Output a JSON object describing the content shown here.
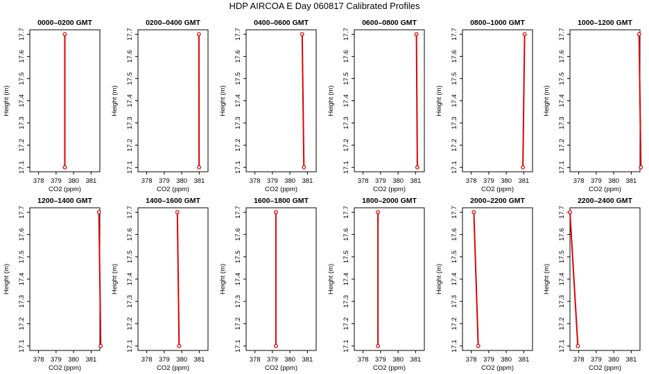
{
  "title": "HDP  AIRCOA E  Day 060817  Calibrated Profiles",
  "colors": {
    "profile": "#dd0000",
    "axis": "#000000"
  },
  "chart_data": [
    {
      "type": "line",
      "title": "0000–0200 GMT",
      "xlabel": "CO2 (ppm)",
      "ylabel": "Height (m)",
      "xlim": [
        377.5,
        381.5
      ],
      "ylim": [
        17.08,
        17.72
      ],
      "xticks": [
        "378",
        "379",
        "380",
        "381"
      ],
      "yticks": [
        "17.1",
        "17.2",
        "17.3",
        "17.4",
        "17.5",
        "17.6",
        "17.7"
      ],
      "series": [
        {
          "x": [
            379.5,
            379.5
          ],
          "y": [
            17.1,
            17.7
          ]
        }
      ]
    },
    {
      "type": "line",
      "title": "0200–0400 GMT",
      "xlabel": "CO2 (ppm)",
      "ylabel": "Height (m)",
      "xlim": [
        377.5,
        381.5
      ],
      "ylim": [
        17.08,
        17.72
      ],
      "xticks": [
        "378",
        "379",
        "380",
        "381"
      ],
      "yticks": [
        "17.1",
        "17.2",
        "17.3",
        "17.4",
        "17.5",
        "17.6",
        "17.7"
      ],
      "series": [
        {
          "x": [
            380.99,
            380.98
          ],
          "y": [
            17.1,
            17.7
          ]
        }
      ]
    },
    {
      "type": "line",
      "title": "0400–0600 GMT",
      "xlabel": "CO2 (ppm)",
      "ylabel": "Height (m)",
      "xlim": [
        377.5,
        381.5
      ],
      "ylim": [
        17.08,
        17.72
      ],
      "xticks": [
        "378",
        "379",
        "380",
        "381"
      ],
      "yticks": [
        "17.1",
        "17.2",
        "17.3",
        "17.4",
        "17.5",
        "17.6",
        "17.7"
      ],
      "series": [
        {
          "x": [
            380.8,
            380.7
          ],
          "y": [
            17.1,
            17.7
          ]
        }
      ]
    },
    {
      "type": "line",
      "title": "0600–0800 GMT",
      "xlabel": "CO2 (ppm)",
      "ylabel": "Height (m)",
      "xlim": [
        377.5,
        381.5
      ],
      "ylim": [
        17.08,
        17.72
      ],
      "xticks": [
        "378",
        "379",
        "380",
        "381"
      ],
      "yticks": [
        "17.1",
        "17.2",
        "17.3",
        "17.4",
        "17.5",
        "17.6",
        "17.7"
      ],
      "series": [
        {
          "x": [
            381.1,
            381.05
          ],
          "y": [
            17.1,
            17.7
          ]
        }
      ]
    },
    {
      "type": "line",
      "title": "0800–1000 GMT",
      "xlabel": "CO2 (ppm)",
      "ylabel": "Height (m)",
      "xlim": [
        377.5,
        381.5
      ],
      "ylim": [
        17.08,
        17.72
      ],
      "xticks": [
        "378",
        "379",
        "380",
        "381"
      ],
      "yticks": [
        "17.1",
        "17.2",
        "17.3",
        "17.4",
        "17.5",
        "17.6",
        "17.7"
      ],
      "series": [
        {
          "x": [
            380.95,
            381.05
          ],
          "y": [
            17.1,
            17.7
          ]
        }
      ]
    },
    {
      "type": "line",
      "title": "1000–1200 GMT",
      "xlabel": "CO2 (ppm)",
      "ylabel": "Height (m)",
      "xlim": [
        377.5,
        381.5
      ],
      "ylim": [
        17.08,
        17.72
      ],
      "xticks": [
        "378",
        "379",
        "380",
        "381"
      ],
      "yticks": [
        "17.1",
        "17.2",
        "17.3",
        "17.4",
        "17.5",
        "17.6",
        "17.7"
      ],
      "series": [
        {
          "x": [
            381.55,
            381.45
          ],
          "y": [
            17.1,
            17.7
          ]
        }
      ]
    },
    {
      "type": "line",
      "title": "1200–1400 GMT",
      "xlabel": "CO2 (ppm)",
      "ylabel": "Height (m)",
      "xlim": [
        377.5,
        381.5
      ],
      "ylim": [
        17.08,
        17.72
      ],
      "xticks": [
        "378",
        "379",
        "380",
        "381"
      ],
      "yticks": [
        "17.1",
        "17.2",
        "17.3",
        "17.4",
        "17.5",
        "17.6",
        "17.7"
      ],
      "series": [
        {
          "x": [
            381.55,
            381.45
          ],
          "y": [
            17.1,
            17.7
          ]
        }
      ]
    },
    {
      "type": "line",
      "title": "1400–1600 GMT",
      "xlabel": "CO2 (ppm)",
      "ylabel": "Height (m)",
      "xlim": [
        377.5,
        381.5
      ],
      "ylim": [
        17.08,
        17.72
      ],
      "xticks": [
        "378",
        "379",
        "380",
        "381"
      ],
      "yticks": [
        "17.1",
        "17.2",
        "17.3",
        "17.4",
        "17.5",
        "17.6",
        "17.7"
      ],
      "series": [
        {
          "x": [
            379.85,
            379.75
          ],
          "y": [
            17.1,
            17.7
          ]
        }
      ]
    },
    {
      "type": "line",
      "title": "1600–1800 GMT",
      "xlabel": "CO2 (ppm)",
      "ylabel": "Height (m)",
      "xlim": [
        377.5,
        381.5
      ],
      "ylim": [
        17.08,
        17.72
      ],
      "xticks": [
        "378",
        "379",
        "380",
        "381"
      ],
      "yticks": [
        "17.1",
        "17.2",
        "17.3",
        "17.4",
        "17.5",
        "17.6",
        "17.7"
      ],
      "series": [
        {
          "x": [
            379.2,
            379.2
          ],
          "y": [
            17.1,
            17.7
          ]
        }
      ]
    },
    {
      "type": "line",
      "title": "1800–2000 GMT",
      "xlabel": "CO2 (ppm)",
      "ylabel": "Height (m)",
      "xlim": [
        377.5,
        381.5
      ],
      "ylim": [
        17.08,
        17.72
      ],
      "xticks": [
        "378",
        "379",
        "380",
        "381"
      ],
      "yticks": [
        "17.1",
        "17.2",
        "17.3",
        "17.4",
        "17.5",
        "17.6",
        "17.7"
      ],
      "series": [
        {
          "x": [
            378.85,
            378.85
          ],
          "y": [
            17.1,
            17.7
          ]
        }
      ]
    },
    {
      "type": "line",
      "title": "2000–2200 GMT",
      "xlabel": "CO2 (ppm)",
      "ylabel": "Height (m)",
      "xlim": [
        377.5,
        381.5
      ],
      "ylim": [
        17.08,
        17.72
      ],
      "xticks": [
        "378",
        "379",
        "380",
        "381"
      ],
      "yticks": [
        "17.1",
        "17.2",
        "17.3",
        "17.4",
        "17.5",
        "17.6",
        "17.7"
      ],
      "series": [
        {
          "x": [
            378.4,
            378.15
          ],
          "y": [
            17.1,
            17.7
          ]
        }
      ]
    },
    {
      "type": "line",
      "title": "2200–2400 GMT",
      "xlabel": "CO2 (ppm)",
      "ylabel": "Height (m)",
      "xlim": [
        377.5,
        381.5
      ],
      "ylim": [
        17.08,
        17.72
      ],
      "xticks": [
        "378",
        "379",
        "380",
        "381"
      ],
      "yticks": [
        "17.1",
        "17.2",
        "17.3",
        "17.4",
        "17.5",
        "17.6",
        "17.7"
      ],
      "series": [
        {
          "x": [
            377.95,
            377.5
          ],
          "y": [
            17.1,
            17.7
          ]
        }
      ]
    }
  ]
}
